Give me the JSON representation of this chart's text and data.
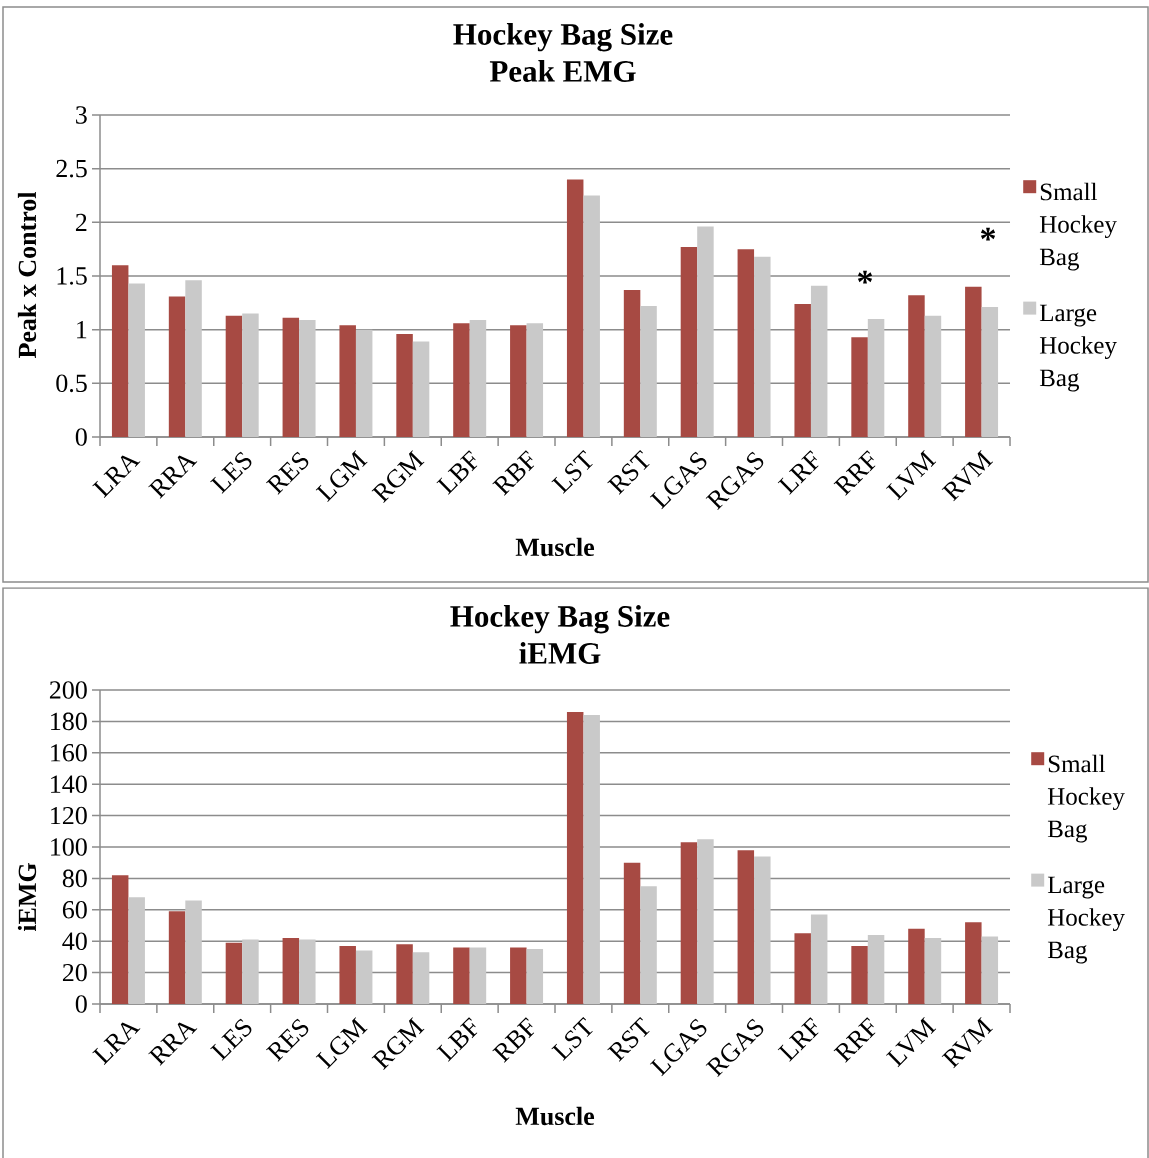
{
  "chart_data": [
    {
      "type": "bar",
      "title": "Hockey Bag Size",
      "subtitle": "Peak EMG",
      "xlabel": "Muscle",
      "ylabel": "Peak x Control",
      "categories": [
        "LRA",
        "RRA",
        "LES",
        "RES",
        "LGM",
        "RGM",
        "LBF",
        "RBF",
        "LST",
        "RST",
        "LGAS",
        "RGAS",
        "LRF",
        "RRF",
        "LVM",
        "RVM"
      ],
      "series": [
        {
          "name": "Small Hockey Bag",
          "color": "#a74a43",
          "values": [
            1.6,
            1.31,
            1.13,
            1.11,
            1.04,
            0.96,
            1.06,
            1.04,
            2.4,
            1.37,
            1.77,
            1.75,
            1.24,
            0.93,
            1.32,
            1.4
          ]
        },
        {
          "name": "Large Hockey Bag",
          "color": "#c9c9c9",
          "values": [
            1.43,
            1.46,
            1.15,
            1.09,
            1.0,
            0.89,
            1.09,
            1.06,
            2.25,
            1.22,
            1.96,
            1.68,
            1.41,
            1.1,
            1.13,
            1.21
          ]
        }
      ],
      "ylim": [
        0,
        3
      ],
      "yticks": [
        0,
        0.5,
        1,
        1.5,
        2,
        2.5,
        3
      ],
      "grid": "y",
      "legend": "right",
      "annotations": [
        "*",
        "*"
      ]
    },
    {
      "type": "bar",
      "title": "Hockey Bag Size",
      "subtitle": "iEMG",
      "xlabel": "Muscle",
      "ylabel": "iEMG",
      "categories": [
        "LRA",
        "RRA",
        "LES",
        "RES",
        "LGM",
        "RGM",
        "LBF",
        "RBF",
        "LST",
        "RST",
        "LGAS",
        "RGAS",
        "LRF",
        "RRF",
        "LVM",
        "RVM"
      ],
      "series": [
        {
          "name": "Small Hockey Bag",
          "color": "#a74a43",
          "values": [
            82,
            59,
            39,
            42,
            37,
            38,
            36,
            36,
            186,
            90,
            103,
            98,
            45,
            37,
            48,
            52
          ]
        },
        {
          "name": "Large Hockey Bag",
          "color": "#c9c9c9",
          "values": [
            68,
            66,
            41,
            41,
            34,
            33,
            36,
            35,
            184,
            75,
            105,
            94,
            57,
            44,
            42,
            43
          ]
        }
      ],
      "ylim": [
        0,
        200
      ],
      "yticks": [
        0,
        20,
        40,
        60,
        80,
        100,
        120,
        140,
        160,
        180,
        200
      ],
      "grid": "y",
      "legend": "right"
    }
  ]
}
